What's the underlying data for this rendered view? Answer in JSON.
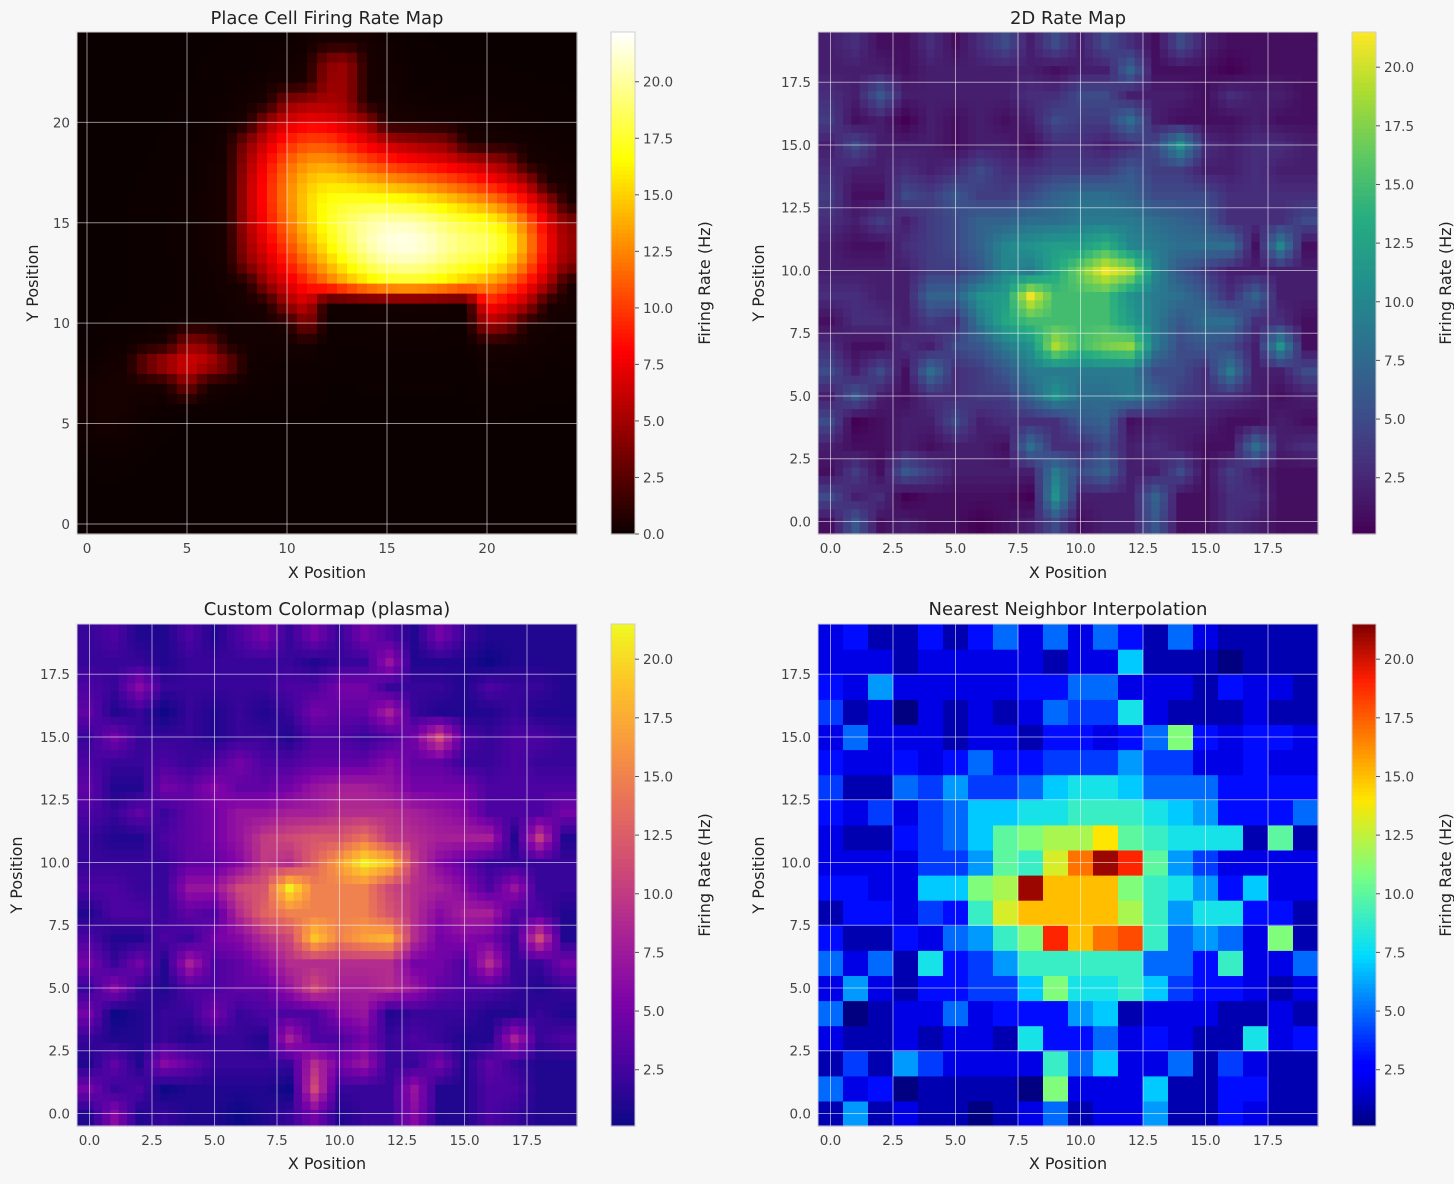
{
  "chart_data": [
    {
      "type": "heatmap",
      "title": "Place Cell Firing Rate Map",
      "xlabel": "X Position",
      "ylabel": "Y Position",
      "colorbar_label": "Firing Rate (Hz)",
      "colormap": "hot",
      "interpolation": "smooth",
      "grid_size": 25,
      "xlim": [
        -0.5,
        24.5
      ],
      "ylim": [
        -0.5,
        24.5
      ],
      "xticks": [
        "0",
        "5",
        "10",
        "15",
        "20"
      ],
      "yticks": [
        "0",
        "5",
        "10",
        "15",
        "20"
      ],
      "colorbar_range": [
        0.0,
        22.2
      ],
      "colorbar_ticks": [
        "0.0",
        "2.5",
        "5.0",
        "7.5",
        "10.0",
        "12.5",
        "15.0",
        "17.5",
        "20.0"
      ],
      "grid": true,
      "field_note_peak_rate": 21.7,
      "field_peak_location": [
        16,
        14
      ]
    },
    {
      "type": "heatmap",
      "title": "2D Rate Map",
      "xlabel": "X Position",
      "ylabel": "Y Position",
      "colorbar_label": "Firing Rate (Hz)",
      "colormap": "viridis",
      "interpolation": "smooth",
      "grid_size": 20,
      "xlim": [
        -0.5,
        19.5
      ],
      "ylim": [
        -0.5,
        19.5
      ],
      "xticks": [
        "0.0",
        "2.5",
        "5.0",
        "7.5",
        "10.0",
        "12.5",
        "15.0",
        "17.5"
      ],
      "yticks": [
        "0.0",
        "2.5",
        "5.0",
        "7.5",
        "10.0",
        "12.5",
        "15.0",
        "17.5"
      ],
      "colorbar_range": [
        0.1,
        21.5
      ],
      "colorbar_ticks": [
        "2.5",
        "5.0",
        "7.5",
        "10.0",
        "12.5",
        "15.0",
        "17.5",
        "20.0"
      ],
      "grid": true
    },
    {
      "type": "heatmap",
      "title": "Custom Colormap (plasma)",
      "xlabel": "X Position",
      "ylabel": "Y Position",
      "colorbar_label": "Firing Rate (Hz)",
      "colormap": "plasma",
      "interpolation": "smooth",
      "grid_size": 20,
      "xlim": [
        -0.5,
        19.5
      ],
      "ylim": [
        -0.5,
        19.5
      ],
      "xticks": [
        "0.0",
        "2.5",
        "5.0",
        "7.5",
        "10.0",
        "12.5",
        "15.0",
        "17.5"
      ],
      "yticks": [
        "0.0",
        "2.5",
        "5.0",
        "7.5",
        "10.0",
        "12.5",
        "15.0",
        "17.5"
      ],
      "colorbar_range": [
        0.1,
        21.5
      ],
      "colorbar_ticks": [
        "2.5",
        "5.0",
        "7.5",
        "10.0",
        "12.5",
        "15.0",
        "17.5",
        "20.0"
      ],
      "grid": true
    },
    {
      "type": "heatmap",
      "title": "Nearest Neighbor Interpolation",
      "xlabel": "X Position",
      "ylabel": "Y Position",
      "colorbar_label": "Firing Rate (Hz)",
      "colormap": "jet",
      "interpolation": "nearest",
      "grid_size": 20,
      "xlim": [
        -0.5,
        19.5
      ],
      "ylim": [
        -0.5,
        19.5
      ],
      "xticks": [
        "0.0",
        "2.5",
        "5.0",
        "7.5",
        "10.0",
        "12.5",
        "15.0",
        "17.5"
      ],
      "yticks": [
        "0.0",
        "2.5",
        "5.0",
        "7.5",
        "10.0",
        "12.5",
        "15.0",
        "17.5"
      ],
      "colorbar_range": [
        0.1,
        21.5
      ],
      "colorbar_ticks": [
        "2.5",
        "5.0",
        "7.5",
        "10.0",
        "12.5",
        "15.0",
        "17.5",
        "20.0"
      ],
      "grid": true
    }
  ],
  "rate_map_20": [
    [
      1,
      6,
      1,
      2,
      1,
      1,
      0,
      1,
      2,
      5,
      1,
      2,
      2,
      6,
      1,
      1,
      3,
      2,
      1,
      1
    ],
    [
      5,
      2,
      3,
      0,
      1,
      1,
      1,
      1,
      0,
      11,
      2,
      2,
      2,
      7,
      1,
      1,
      3,
      3,
      1,
      1
    ],
    [
      1,
      4,
      1,
      6,
      4,
      2,
      2,
      2,
      2,
      9,
      5,
      7,
      2,
      2,
      5,
      1,
      4,
      2,
      1,
      1
    ],
    [
      2,
      1,
      1,
      2,
      1,
      2,
      2,
      1,
      8,
      3,
      3,
      5,
      2,
      3,
      2,
      1,
      1,
      8,
      2,
      3
    ],
    [
      5,
      0,
      1,
      2,
      2,
      5,
      2,
      3,
      3,
      3,
      6,
      7,
      1,
      2,
      2,
      2,
      1,
      1,
      2,
      1
    ],
    [
      2,
      6,
      2,
      1,
      3,
      3,
      4,
      4,
      7,
      11,
      8,
      8,
      9,
      7,
      4,
      3,
      3,
      2,
      1,
      2
    ],
    [
      5,
      2,
      5,
      1,
      8,
      3,
      4,
      6,
      9,
      9,
      9,
      9,
      9,
      5,
      5,
      3,
      9,
      2,
      2,
      5
    ],
    [
      3,
      1,
      1,
      3,
      2,
      5,
      6,
      9,
      11,
      19,
      15,
      17,
      18,
      9,
      5,
      6,
      5,
      2,
      11,
      1
    ],
    [
      1,
      3,
      3,
      2,
      4,
      3,
      9,
      13,
      15,
      15,
      15,
      15,
      12,
      9,
      6,
      8,
      8,
      3,
      3,
      1
    ],
    [
      3,
      3,
      2,
      2,
      7,
      7,
      11,
      12,
      21,
      15,
      15,
      15,
      11,
      9,
      8,
      6,
      3,
      7,
      2,
      2
    ],
    [
      2,
      2,
      2,
      2,
      4,
      4,
      6,
      10,
      9,
      13,
      17,
      21,
      19,
      10,
      6,
      4,
      2,
      2,
      2,
      2
    ],
    [
      2,
      1,
      1,
      3,
      4,
      5,
      7,
      10,
      11,
      12,
      12,
      14,
      10,
      9,
      8,
      8,
      8,
      1,
      10,
      1
    ],
    [
      3,
      2,
      4,
      2,
      4,
      5,
      7,
      7,
      8,
      8,
      9,
      9,
      9,
      8,
      7,
      6,
      3,
      3,
      3,
      5
    ],
    [
      4,
      1,
      1,
      5,
      4,
      6,
      4,
      4,
      5,
      7,
      8,
      8,
      7,
      5,
      5,
      5,
      3,
      3,
      3,
      3
    ],
    [
      3,
      2,
      2,
      3,
      2,
      3,
      5,
      3,
      3,
      4,
      4,
      4,
      6,
      4,
      4,
      2,
      2,
      3,
      2,
      2
    ],
    [
      2,
      5,
      2,
      2,
      2,
      1,
      2,
      2,
      1,
      3,
      3,
      2,
      3,
      5,
      11,
      3,
      2,
      3,
      3,
      2
    ],
    [
      4,
      1,
      2,
      0,
      2,
      1,
      2,
      1,
      2,
      5,
      4,
      4,
      8,
      2,
      1,
      1,
      1,
      2,
      1,
      1
    ],
    [
      3,
      2,
      6,
      2,
      2,
      2,
      2,
      2,
      3,
      3,
      5,
      5,
      2,
      2,
      2,
      1,
      3,
      2,
      2,
      1
    ],
    [
      2,
      2,
      2,
      1,
      2,
      2,
      2,
      2,
      2,
      1,
      2,
      2,
      7,
      1,
      1,
      1,
      0,
      1,
      1,
      1
    ],
    [
      2,
      3,
      1,
      1,
      3,
      1,
      3,
      5,
      2,
      5,
      2,
      5,
      3,
      1,
      5,
      2,
      1,
      1,
      1,
      1
    ]
  ]
}
